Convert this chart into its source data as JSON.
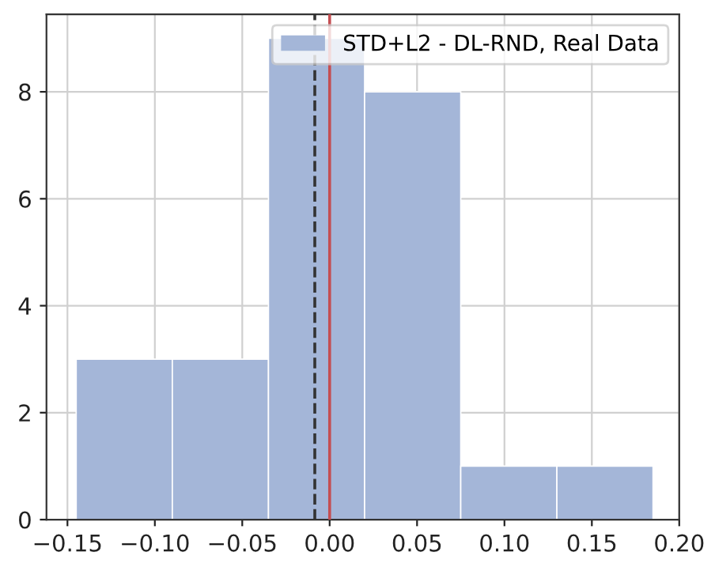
{
  "chart_data": {
    "type": "histogram",
    "bins": [
      -0.145,
      -0.09,
      -0.035,
      0.02,
      0.075,
      0.13,
      0.185
    ],
    "series": [
      {
        "name": "STD+L2 - DL-RND, Real Data",
        "color": "#a4b6d8",
        "values": [
          3,
          3,
          9,
          8,
          1,
          1
        ]
      }
    ],
    "xlim": [
      -0.162,
      0.2
    ],
    "ylim": [
      0,
      9.45
    ],
    "xticks": [
      {
        "value": -0.15,
        "label": "−0.15"
      },
      {
        "value": -0.1,
        "label": "−0.10"
      },
      {
        "value": -0.05,
        "label": "−0.05"
      },
      {
        "value": 0,
        "label": "0.00"
      },
      {
        "value": 0.05,
        "label": "0.05"
      },
      {
        "value": 0.1,
        "label": "0.10"
      },
      {
        "value": 0.15,
        "label": "0.15"
      },
      {
        "value": 0.2,
        "label": "0.20"
      }
    ],
    "yticks": [
      0,
      2,
      4,
      6,
      8
    ],
    "ref_lines": [
      {
        "axis": "x",
        "value": -0.0085,
        "color": "#333333",
        "line_style": "dashed"
      },
      {
        "axis": "x",
        "value": 0.0,
        "color": "#c44e52",
        "line_style": "solid"
      }
    ],
    "grid": true,
    "legend": "top right"
  }
}
